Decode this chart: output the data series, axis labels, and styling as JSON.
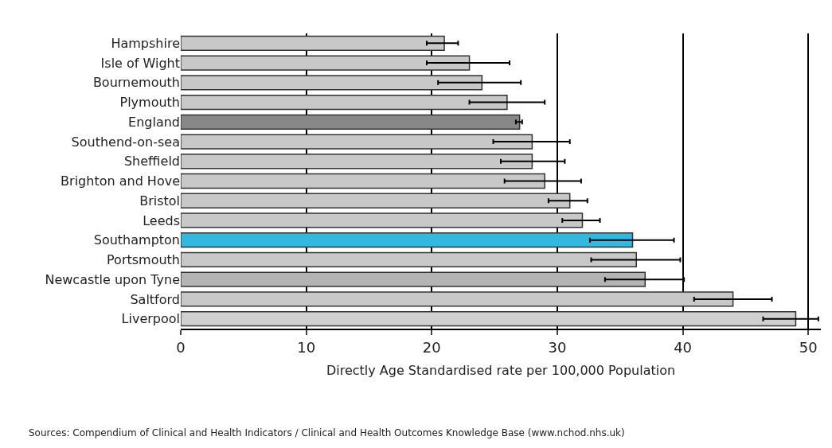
{
  "chart_data": {
    "type": "bar",
    "orientation": "horizontal",
    "xlabel": "Directly Age Standardised rate per 100,000 Population",
    "categories": [
      "Hampshire",
      "Isle of Wight",
      "Bournemouth",
      "Plymouth",
      "England",
      "Southend-on-sea",
      "Sheffield",
      "Brighton and Hove",
      "Bristol",
      "Leeds",
      "Southampton",
      "Portsmouth",
      "Newcastle upon Tyne",
      "Saltford",
      "Liverpool"
    ],
    "values": [
      21,
      23,
      24,
      26,
      27,
      28,
      28,
      29,
      31,
      32,
      36,
      36.3,
      37,
      44,
      49
    ],
    "colors": [
      "#c8c8c8",
      "#c8c8c8",
      "#c8c8c8",
      "#c8c8c8",
      "#888888",
      "#c8c8c8",
      "#c8c8c8",
      "#c8c8c8",
      "#c8c8c8",
      "#c8c8c8",
      "#33b8e0",
      "#c8c8c8",
      "#b4b4b4",
      "#c8c8c8",
      "#d0d0d0"
    ],
    "errors": [
      [
        19.6,
        22.1
      ],
      [
        19.6,
        26.2
      ],
      [
        20.5,
        27.1
      ],
      [
        23,
        29
      ],
      [
        26.7,
        27.2
      ],
      [
        24.9,
        31
      ],
      [
        25.5,
        30.6
      ],
      [
        25.8,
        31.9
      ],
      [
        29.3,
        32.4
      ],
      [
        30.4,
        33.4
      ],
      [
        32.6,
        39.3
      ],
      [
        32.7,
        39.8
      ],
      [
        33.8,
        40.1
      ],
      [
        40.9,
        47.1
      ],
      [
        46.4,
        50.8
      ]
    ],
    "xlim": [
      0,
      51
    ],
    "xticks": [
      0,
      10,
      20,
      30,
      40,
      50
    ],
    "grid": "x",
    "annotations": [
      "Sources: Compendium of Clinical and Health Indicators / Clinical and Health Outcomes Knowledge Base (www.nchod.nhs.uk)"
    ]
  }
}
